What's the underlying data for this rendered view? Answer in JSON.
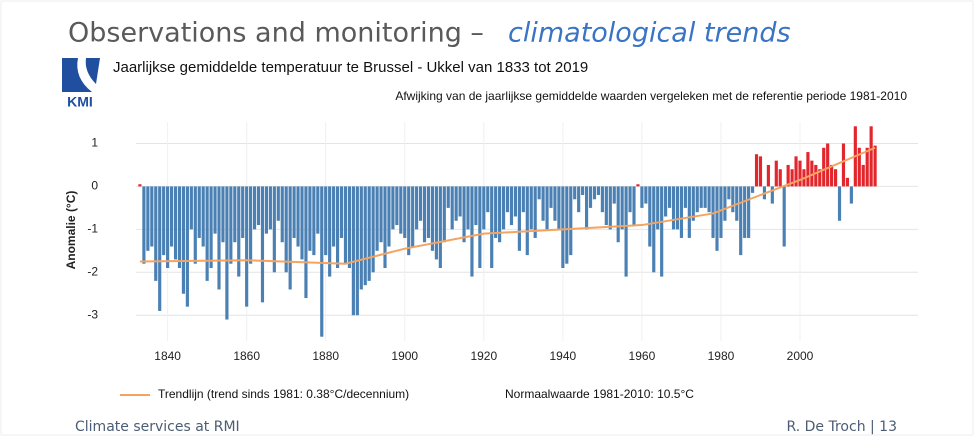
{
  "slide": {
    "title": "Observations and monitoring –",
    "title_emphasis": "climatological trends",
    "logo": "KMI",
    "footer_left": "Climate services at RMI",
    "footer_right": "R. De Troch | 13"
  },
  "chart_data": {
    "type": "bar",
    "title": "Jaarlijkse gemiddelde temperatuur te Brussel - Ukkel van 1833 tot 2019",
    "subtitle": "Afwijking van de jaarlijkse gemiddelde waarden vergeleken met de referentie periode 1981-2010",
    "y_label": "Anomalie (°C)",
    "annotation": "Normaalwaarde 1981-2010: 10.5°C",
    "colors": {
      "positive": "#e3262c",
      "negative": "#4a80b3"
    },
    "grid": true,
    "xlim": [
      1832,
      2021
    ],
    "xticks": [
      1840,
      1860,
      1880,
      1900,
      1920,
      1940,
      1960,
      1980,
      2000
    ],
    "ylim": [
      -3.6,
      1.5
    ],
    "yticks": [
      -3,
      -2,
      -1,
      0,
      1
    ],
    "x": [
      1833,
      1834,
      1835,
      1836,
      1837,
      1838,
      1839,
      1840,
      1841,
      1842,
      1843,
      1844,
      1845,
      1846,
      1847,
      1848,
      1849,
      1850,
      1851,
      1852,
      1853,
      1854,
      1855,
      1856,
      1857,
      1858,
      1859,
      1860,
      1861,
      1862,
      1863,
      1864,
      1865,
      1866,
      1867,
      1868,
      1869,
      1870,
      1871,
      1872,
      1873,
      1874,
      1875,
      1876,
      1877,
      1878,
      1879,
      1880,
      1881,
      1882,
      1883,
      1884,
      1885,
      1886,
      1887,
      1888,
      1889,
      1890,
      1891,
      1892,
      1893,
      1894,
      1895,
      1896,
      1897,
      1898,
      1899,
      1900,
      1901,
      1902,
      1903,
      1904,
      1905,
      1906,
      1907,
      1908,
      1909,
      1910,
      1911,
      1912,
      1913,
      1914,
      1915,
      1916,
      1917,
      1918,
      1919,
      1920,
      1921,
      1922,
      1923,
      1924,
      1925,
      1926,
      1927,
      1928,
      1929,
      1930,
      1931,
      1932,
      1933,
      1934,
      1935,
      1936,
      1937,
      1938,
      1939,
      1940,
      1941,
      1942,
      1943,
      1944,
      1945,
      1946,
      1947,
      1948,
      1949,
      1950,
      1951,
      1952,
      1953,
      1954,
      1955,
      1956,
      1957,
      1958,
      1959,
      1960,
      1961,
      1962,
      1963,
      1964,
      1965,
      1966,
      1967,
      1968,
      1969,
      1970,
      1971,
      1972,
      1973,
      1974,
      1975,
      1976,
      1977,
      1978,
      1979,
      1980,
      1981,
      1982,
      1983,
      1984,
      1985,
      1986,
      1987,
      1988,
      1989,
      1990,
      1991,
      1992,
      1993,
      1994,
      1995,
      1996,
      1997,
      1998,
      1999,
      2000,
      2001,
      2002,
      2003,
      2004,
      2005,
      2006,
      2007,
      2008,
      2009,
      2010,
      2011,
      2012,
      2013,
      2014,
      2015,
      2016,
      2017,
      2018,
      2019
    ],
    "values": [
      0.05,
      -1.8,
      -1.5,
      -1.4,
      -2.2,
      -2.9,
      -1.6,
      -1.9,
      -1.4,
      -1.7,
      -1.9,
      -2.5,
      -2.8,
      -1.0,
      -1.8,
      -1.2,
      -1.4,
      -2.2,
      -1.9,
      -1.1,
      -2.4,
      -1.3,
      -3.1,
      -1.8,
      -1.3,
      -2.1,
      -1.2,
      -2.8,
      -1.8,
      -1.0,
      -0.9,
      -2.7,
      -1.1,
      -1.0,
      -2.0,
      -0.8,
      -1.3,
      -2.0,
      -2.4,
      -1.2,
      -1.4,
      -1.7,
      -2.6,
      -1.5,
      -1.6,
      -1.1,
      -3.5,
      -1.6,
      -2.1,
      -1.4,
      -1.9,
      -1.2,
      -1.8,
      -1.9,
      -3.0,
      -3.0,
      -2.4,
      -2.3,
      -2.2,
      -2.0,
      -1.5,
      -1.3,
      -1.9,
      -1.4,
      -1.0,
      -0.9,
      -1.1,
      -1.2,
      -1.6,
      -1.4,
      -1.0,
      -0.8,
      -1.3,
      -1.2,
      -1.5,
      -1.7,
      -1.9,
      -1.3,
      -0.5,
      -1.0,
      -0.8,
      -0.7,
      -1.3,
      -1.0,
      -2.1,
      -0.9,
      -1.9,
      -1.0,
      -0.6,
      -1.9,
      -1.2,
      -1.3,
      -1.0,
      -0.6,
      -0.9,
      -0.7,
      -1.5,
      -0.6,
      -1.6,
      -1.0,
      -1.2,
      -0.3,
      -0.8,
      -1.0,
      -0.5,
      -0.8,
      -1.0,
      -1.9,
      -1.8,
      -1.6,
      -0.3,
      -0.6,
      -0.2,
      -1.0,
      -0.5,
      -0.3,
      -0.2,
      -0.6,
      -0.9,
      -1.0,
      -0.4,
      -1.3,
      -1.0,
      -2.1,
      -0.6,
      -0.9,
      0.05,
      -0.5,
      -0.4,
      -1.4,
      -2.0,
      -1.0,
      -2.1,
      -0.7,
      -0.5,
      -1.0,
      -1.0,
      -1.2,
      -0.5,
      -1.2,
      -0.8,
      -0.6,
      -0.5,
      -0.5,
      -0.6,
      -1.2,
      -1.5,
      -1.2,
      -0.8,
      -0.3,
      -0.6,
      -0.8,
      -1.6,
      -1.2,
      -1.2,
      -0.15,
      0.75,
      0.7,
      -0.3,
      0.5,
      -0.4,
      0.6,
      0.4,
      -1.4,
      0.5,
      0.4,
      0.7,
      0.6,
      0.4,
      0.8,
      0.6,
      0.5,
      0.4,
      0.9,
      1.0,
      0.5,
      0.4,
      -0.8,
      1.0,
      0.2,
      -0.4,
      1.4,
      0.9,
      0.5,
      0.9,
      1.4,
      0.95
    ],
    "trend": {
      "name": "Trendlijn (trend sinds 1981: 0.38°C/decennium)",
      "color": "#f4a460",
      "x": [
        1833,
        1860,
        1885,
        1900,
        1920,
        1960,
        1978,
        1990,
        2000,
        2019
      ],
      "values": [
        -1.75,
        -1.72,
        -1.8,
        -1.45,
        -1.1,
        -0.9,
        -0.63,
        -0.2,
        0.15,
        0.9
      ]
    }
  }
}
